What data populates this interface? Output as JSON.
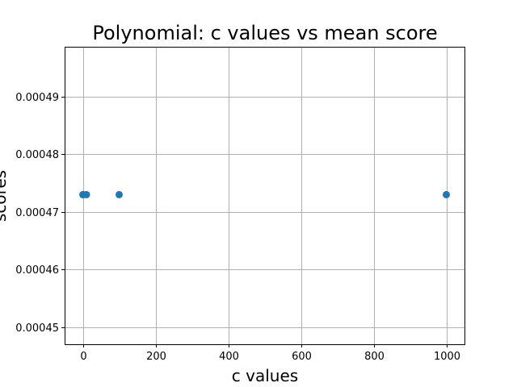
{
  "chart_data": {
    "type": "scatter",
    "title": "Polynomial: c values vs mean score",
    "xlabel": "c values",
    "ylabel": "scores",
    "xlim": [
      -50,
      1050
    ],
    "ylim": [
      0.000447,
      0.0004987
    ],
    "xticks": [
      0,
      200,
      400,
      600,
      800,
      1000
    ],
    "xtick_labels": [
      "0",
      "200",
      "400",
      "600",
      "800",
      "1000"
    ],
    "yticks": [
      0.00045,
      0.00046,
      0.00047,
      0.00048,
      0.00049
    ],
    "ytick_labels": [
      "0.00045",
      "0.00046",
      "0.00047",
      "0.00048",
      "0.00049"
    ],
    "grid": true,
    "series": [
      {
        "color": "#1f77b4",
        "x": [
          0.1,
          1,
          10,
          100,
          1000
        ],
        "y": [
          0.000473,
          0.000473,
          0.000473,
          0.000473,
          0.000473
        ]
      }
    ]
  }
}
